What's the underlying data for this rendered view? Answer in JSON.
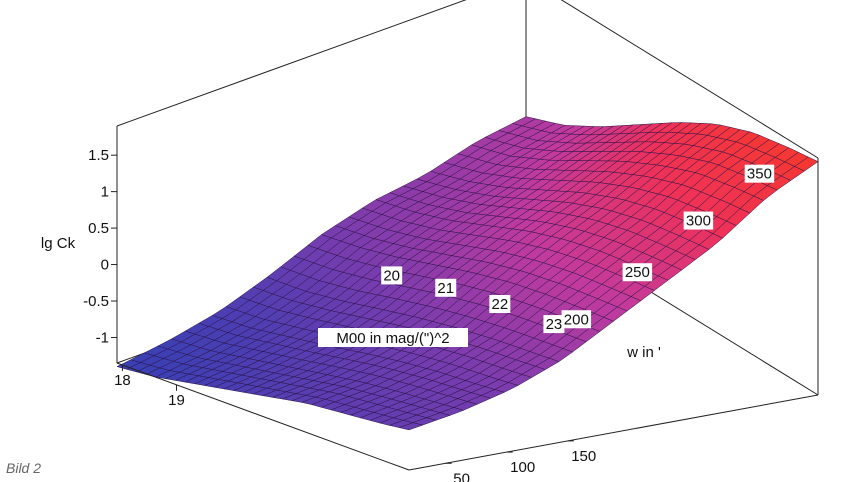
{
  "caption": "Bild 2",
  "chart_data": {
    "type": "surface3d",
    "title": "",
    "zlabel": "lg Ck",
    "xlabel": "M00 in mag/(\")^2",
    "ylabel": "w in '",
    "x_ticks": [
      "18",
      "19",
      "20",
      "21",
      "22",
      "23"
    ],
    "y_ticks": [
      "50",
      "100",
      "150",
      "200",
      "250",
      "300",
      "350"
    ],
    "z_ticks": [
      "-1",
      "-0.5",
      "0",
      "0.5",
      "1",
      "1.5"
    ],
    "xlim": [
      17.9,
      23.3
    ],
    "ylim": [
      20,
      355
    ],
    "zlim": [
      -1.35,
      1.9
    ],
    "colormap": [
      "#3b3fb4",
      "#7a3cae",
      "#c23a9e",
      "#ef3158",
      "#f6382e"
    ],
    "surface_grid": {
      "x": [
        17.9,
        18.6,
        19.3,
        20.0,
        20.7,
        21.4,
        22.1,
        22.8,
        23.3
      ],
      "y": [
        20,
        62,
        104,
        146,
        188,
        230,
        272,
        314,
        355
      ],
      "z": [
        [
          -1.4,
          -1.35,
          -1.25,
          -1.15,
          -1.05,
          -0.95,
          -0.9,
          -0.85,
          -0.8
        ],
        [
          -1.3,
          -1.25,
          -1.15,
          -1.05,
          -0.95,
          -0.85,
          -0.78,
          -0.72,
          -0.68
        ],
        [
          -1.15,
          -1.1,
          -1.0,
          -0.9,
          -0.78,
          -0.68,
          -0.6,
          -0.55,
          -0.5
        ],
        [
          -0.9,
          -0.85,
          -0.75,
          -0.62,
          -0.5,
          -0.4,
          -0.32,
          -0.26,
          -0.22
        ],
        [
          -0.6,
          -0.52,
          -0.4,
          -0.25,
          -0.1,
          0.02,
          0.1,
          0.15,
          0.18
        ],
        [
          -0.4,
          -0.3,
          -0.15,
          0.05,
          0.25,
          0.4,
          0.5,
          0.55,
          0.58
        ],
        [
          -0.3,
          -0.15,
          0.05,
          0.3,
          0.55,
          0.75,
          0.88,
          0.95,
          0.98
        ],
        [
          -0.1,
          0.05,
          0.3,
          0.6,
          0.9,
          1.15,
          1.35,
          1.45,
          1.5
        ],
        [
          0.0,
          0.2,
          0.5,
          0.85,
          1.2,
          1.5,
          1.7,
          1.8,
          1.85
        ]
      ]
    }
  }
}
